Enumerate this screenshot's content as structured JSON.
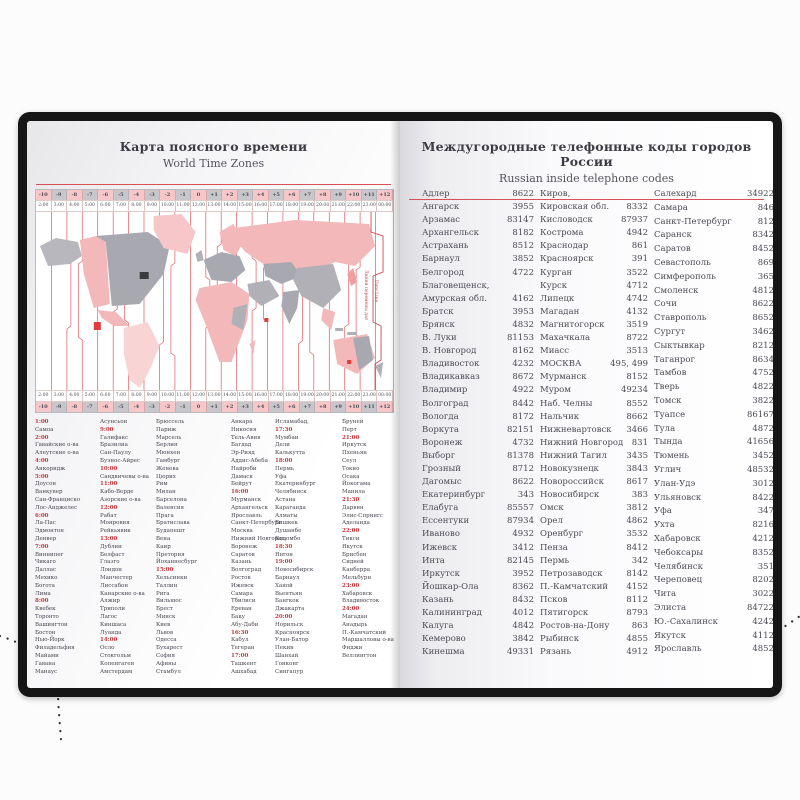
{
  "colors": {
    "accent_red": "#d84f55",
    "time_red": "#c9363c",
    "pink_zone": "#f6c6c8",
    "gray_zone": "#c6c6cb",
    "cover_black": "#161616"
  },
  "left_page": {
    "title": "Карта поясного времени",
    "subtitle": "World Time Zones",
    "map": {
      "zones": [
        "-10",
        "-9",
        "-8",
        "-7",
        "-6",
        "-5",
        "-4",
        "-3",
        "-2",
        "-1",
        "0",
        "+1",
        "+2",
        "+3",
        "+4",
        "+5",
        "+6",
        "+7",
        "+8",
        "+9",
        "+10",
        "+11",
        "+12"
      ],
      "times": [
        "2:00",
        "3:00",
        "4:00",
        "5:00",
        "6:00",
        "7:00",
        "8:00",
        "9:00",
        "10:00",
        "11:00",
        "12:00",
        "13:00",
        "14:00",
        "15:00",
        "16:00",
        "17:00",
        "18:00",
        "19:00",
        "20:00",
        "21:00",
        "22:00",
        "23:00",
        "00:00"
      ],
      "date_line_ru": "Линия перемены дат",
      "date_line_en": "Date Line"
    },
    "city_columns": [
      [
        "1:00",
        "Самоа",
        "2:00",
        "Гавайские о-ва",
        "Алеутские о-ва",
        "4:00",
        "Анкоридж",
        "5:00",
        "Доусон",
        "Ванкувер",
        "Сан-Франциско",
        "Лос-Анджелес",
        "6:00",
        "Ла-Пас",
        "Эдмонтон",
        "Денвер",
        "7:00",
        "Виннипег",
        "Чикаго",
        "Даллас",
        "Мехико",
        "Богота",
        "Лима",
        "8:00",
        "Квебек",
        "Торонто",
        "Вашингтон",
        "Бостон",
        "Нью-Йорк",
        "Филадельфия",
        "Майами",
        "Гавана",
        "Манаус"
      ],
      [
        "Асунсьон",
        "9:00",
        "Галифакс",
        "Бразилиа",
        "Сан-Паулу",
        "Буэнос-Айрес",
        "10:00",
        "Сандвичевы о-ва",
        "11:00",
        "Кабо-Верде",
        "Азорские о-ва",
        "12:00",
        "Рабат",
        "Монровия",
        "Рейкьявик",
        "13:00",
        "Дублин",
        "Белфаст",
        "Глазго",
        "Лондон",
        "Манчестер",
        "Лиссабон",
        "Канарские о-ва",
        "Алжир",
        "Триполи",
        "Лагос",
        "Киншаса",
        "Луанда",
        "14:00",
        "Осло",
        "Стокгольм",
        "Копенгаген",
        "Амстердам"
      ],
      [
        "Брюссель",
        "Париж",
        "Марсель",
        "Берлин",
        "Мюнхен",
        "Гамбург",
        "Женева",
        "Цюрих",
        "Рим",
        "Милан",
        "Барселона",
        "Валенсия",
        "Прага",
        "Братислава",
        "Будапешт",
        "Вена",
        "Каир",
        "Претория",
        "Йоханнесбург",
        "15:00",
        "Хельсинки",
        "Таллин",
        "Рига",
        "Вильнюс",
        "Брест",
        "Минск",
        "Киев",
        "Львов",
        "Одесса",
        "Бухарест",
        "София",
        "Афины",
        "Стамбул"
      ],
      [
        "Анкара",
        "Никосия",
        "Тель-Авив",
        "Багдад",
        "Эр-Рияд",
        "Аддис-Абеба",
        "Найроби",
        "Дамаск",
        "Бейрут",
        "16:00",
        "Мурманск",
        "Архангельск",
        "Ярославль",
        "Санкт-Петербург",
        "Москва",
        "Нижний Новгород,",
        "Воронеж",
        "Саратов",
        "Казань",
        "Волгоград",
        "Ростов",
        "Ижевск",
        "Самара",
        "Тбилиси",
        "Ереван",
        "Баку",
        "Абу-Даби",
        "16:30",
        "Кабул",
        "Тегеран",
        "17:00",
        "Ташкент",
        "Ашхабад"
      ],
      [
        "Исламабад,",
        "17:30",
        "Мумбаи",
        "Дели",
        "Калькутта",
        "18:00",
        "Пермь",
        "Уфа",
        "Екатеринбург",
        "Челябинск",
        "Астана",
        "Караганда",
        "Алматы",
        "Бишкек",
        "Душанбе",
        "Коломбо",
        "18:30",
        "Янгон",
        "19:00",
        "Новосибирск",
        "Барнаул",
        "Ханой",
        "Вьентьян",
        "Бангкок",
        "Джакарта",
        "20:00",
        "Норильск",
        "Красноярск",
        "Улан-Батор",
        "Пекин",
        "Шанхай",
        "Гонконг",
        "Сингапур"
      ],
      [
        "Бруней",
        "Перт",
        "21:00",
        "Иркутск",
        "Пхеньян",
        "Сеул",
        "Токио",
        "Осака",
        "Йокогама",
        "Манила",
        "21:30",
        "Дарвин",
        "Элис-Спрингс",
        "Аделаида",
        "22:00",
        "Тикси",
        "Якутск",
        "Брисбен",
        "Сидней",
        "Канберра",
        "Мельбурн",
        "23:00",
        "Хабаровск",
        "Владивосток",
        "24:00",
        "Магадан",
        "Анадырь",
        "П.-Камчатский",
        "Маршалловы о-ва",
        "Фиджи",
        "Веллингтон"
      ]
    ]
  },
  "right_page": {
    "title": "Междугородные телефонные коды городов России",
    "subtitle": "Russian inside telephone codes",
    "columns": [
      [
        [
          "Адлер",
          "8622"
        ],
        [
          "Ангарск",
          "3955"
        ],
        [
          "Арзамас",
          "83147"
        ],
        [
          "Архангельск",
          "8182"
        ],
        [
          "Астрахань",
          "8512"
        ],
        [
          "Барнаул",
          "3852"
        ],
        [
          "Белгород",
          "4722"
        ],
        [
          "Благовещенск,",
          ""
        ],
        [
          "Амурская обл.",
          "4162"
        ],
        [
          "Братск",
          "3953"
        ],
        [
          "Брянск",
          "4832"
        ],
        [
          "В. Луки",
          "81153"
        ],
        [
          "В. Новгород",
          "8162"
        ],
        [
          "Владивосток",
          "4232"
        ],
        [
          "Владикавказ",
          "8672"
        ],
        [
          "Владимир",
          "4922"
        ],
        [
          "Волгоград",
          "8442"
        ],
        [
          "Вологда",
          "8172"
        ],
        [
          "Воркута",
          "82151"
        ],
        [
          "Воронеж",
          "4732"
        ],
        [
          "Выборг",
          "81378"
        ],
        [
          "Грозный",
          "8712"
        ],
        [
          "Дагомыс",
          "8622"
        ],
        [
          "Екатеринбург",
          "343"
        ],
        [
          "Елабуга",
          "85557"
        ],
        [
          "Ессентуки",
          "87934"
        ],
        [
          "Иваново",
          "4932"
        ],
        [
          "Ижевск",
          "3412"
        ],
        [
          "Инта",
          "82145"
        ],
        [
          "Иркутск",
          "3952"
        ],
        [
          "Йошкар-Ола",
          "8362"
        ],
        [
          "Казань",
          "8432"
        ],
        [
          "Калининград",
          "4012"
        ],
        [
          "Калуга",
          "4842"
        ],
        [
          "Кемерово",
          "3842"
        ],
        [
          "Кинешма",
          "49331"
        ]
      ],
      [
        [
          "Киров,",
          ""
        ],
        [
          "Кировская обл.",
          "8332"
        ],
        [
          "Кисловодск",
          "87937"
        ],
        [
          "Кострома",
          "4942"
        ],
        [
          "Краснодар",
          "861"
        ],
        [
          "Красноярск",
          "391"
        ],
        [
          "Курган",
          "3522"
        ],
        [
          "Курск",
          "4712"
        ],
        [
          "Липецк",
          "4742"
        ],
        [
          "Магадан",
          "4132"
        ],
        [
          "Магнитогорск",
          "3519"
        ],
        [
          "Махачкала",
          "8722"
        ],
        [
          "Миасс",
          "3513"
        ],
        [
          "МОСКВА",
          "495, 499"
        ],
        [
          "Мурманск",
          "8152"
        ],
        [
          "Муром",
          "49234"
        ],
        [
          "Наб. Челны",
          "8552"
        ],
        [
          "Нальчик",
          "8662"
        ],
        [
          "Нижневартовск",
          "3466"
        ],
        [
          "Нижний Новгород",
          "831"
        ],
        [
          "Нижний Тагил",
          "3435"
        ],
        [
          "Новокузнецк",
          "3843"
        ],
        [
          "Новороссийск",
          "8617"
        ],
        [
          "Новосибирск",
          "383"
        ],
        [
          "Омск",
          "3812"
        ],
        [
          "Орел",
          "4862"
        ],
        [
          "Оренбург",
          "3532"
        ],
        [
          "Пенза",
          "8412"
        ],
        [
          "Пермь",
          "342"
        ],
        [
          "Петрозаводск",
          "8142"
        ],
        [
          "П.-Камчатский",
          "4152"
        ],
        [
          "Псков",
          "8112"
        ],
        [
          "Пятигорск",
          "8793"
        ],
        [
          "Ростов-на-Дону",
          "863"
        ],
        [
          "Рыбинск",
          "4855"
        ],
        [
          "Рязань",
          "4912"
        ]
      ],
      [
        [
          "Салехард",
          "34922"
        ],
        [
          "Самара",
          "846"
        ],
        [
          "Санкт-Петербург",
          "812"
        ],
        [
          "Саранск",
          "8342"
        ],
        [
          "Саратов",
          "8452"
        ],
        [
          "Севастополь",
          "869"
        ],
        [
          "Симферополь",
          "365"
        ],
        [
          "Смоленск",
          "4812"
        ],
        [
          "Сочи",
          "8622"
        ],
        [
          "Ставрополь",
          "8652"
        ],
        [
          "Сургут",
          "3462"
        ],
        [
          "Сыктывкар",
          "8212"
        ],
        [
          "Таганрог",
          "8634"
        ],
        [
          "Тамбов",
          "4752"
        ],
        [
          "Тверь",
          "4822"
        ],
        [
          "Томск",
          "3822"
        ],
        [
          "Туапсе",
          "86167"
        ],
        [
          "Тула",
          "4872"
        ],
        [
          "Тында",
          "41656"
        ],
        [
          "Тюмень",
          "3452"
        ],
        [
          "Углич",
          "48532"
        ],
        [
          "Улан-Удэ",
          "3012"
        ],
        [
          "Ульяновск",
          "8422"
        ],
        [
          "Уфа",
          "347"
        ],
        [
          "Ухта",
          "8216"
        ],
        [
          "Хабаровск",
          "4212"
        ],
        [
          "Чебоксары",
          "8352"
        ],
        [
          "Челябинск",
          "351"
        ],
        [
          "Череповец",
          "8202"
        ],
        [
          "Чита",
          "3022"
        ],
        [
          "Элиста",
          "84722"
        ],
        [
          "Ю.-Сахалинск",
          "4242"
        ],
        [
          "Якутск",
          "4112"
        ],
        [
          "Ярославль",
          "4852"
        ]
      ]
    ]
  }
}
